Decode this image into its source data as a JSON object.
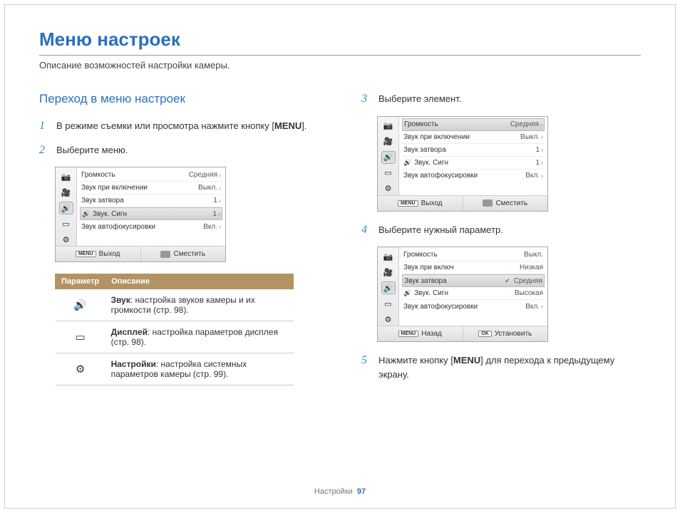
{
  "title": "Меню настроек",
  "subtitle": "Описание возможностей настройки камеры.",
  "section": "Переход в меню настроек",
  "steps": {
    "s1_num": "1",
    "s1_a": "В режиме съемки или просмотра нажмите кнопку [",
    "s1_b": "MENU",
    "s1_c": "].",
    "s2_num": "2",
    "s2": "Выберите меню.",
    "s3_num": "3",
    "s3": "Выберите элемент.",
    "s4_num": "4",
    "s4": "Выберите нужный параметр.",
    "s5_num": "5",
    "s5_a": "Нажмите кнопку [",
    "s5_b": "MENU",
    "s5_c": "] для перехода к предыдущему экрану."
  },
  "menu": {
    "items": [
      {
        "label": "Громкость",
        "value": "Средняя"
      },
      {
        "label": "Звук при включении",
        "value": "Выкл."
      },
      {
        "label": "Звук затвора",
        "value": "1"
      },
      {
        "label": "Звук. Сигн",
        "value": "1",
        "icon": "🔊"
      },
      {
        "label": "Звук автофокусировки",
        "value": "Вкл."
      }
    ],
    "menu4_items": [
      {
        "label": "Громкость",
        "value": "Выкл."
      },
      {
        "label": "Звук при включ",
        "value": "Низкая"
      },
      {
        "label": "Звук затвора",
        "value": "Средняя"
      },
      {
        "label": "Звук. Сигн",
        "value": "Высокая"
      },
      {
        "label": "Звук автофокусировки",
        "value": "Вкл."
      }
    ],
    "foot_exit": "Выход",
    "foot_move": "Сместить",
    "foot_back": "Назад",
    "foot_set": "Установить",
    "badge_menu": "MENU",
    "badge_ok": "OK"
  },
  "popup": {
    "opts": [
      "Выкл.",
      "Низкая",
      "Средняя",
      "Высокая"
    ]
  },
  "params": {
    "h1": "Параметр",
    "h2": "Описание",
    "r1_b": "Звук",
    "r1": ": настройка звуков камеры и их громкости (стр. 98).",
    "r2_b": "Дисплей",
    "r2": ": настройка параметров дисплея (стр. 98).",
    "r3_b": "Настройки",
    "r3": ": настройка системных параметров камеры (стр. 99)."
  },
  "footer": {
    "label": "Настройки",
    "page": "97"
  }
}
